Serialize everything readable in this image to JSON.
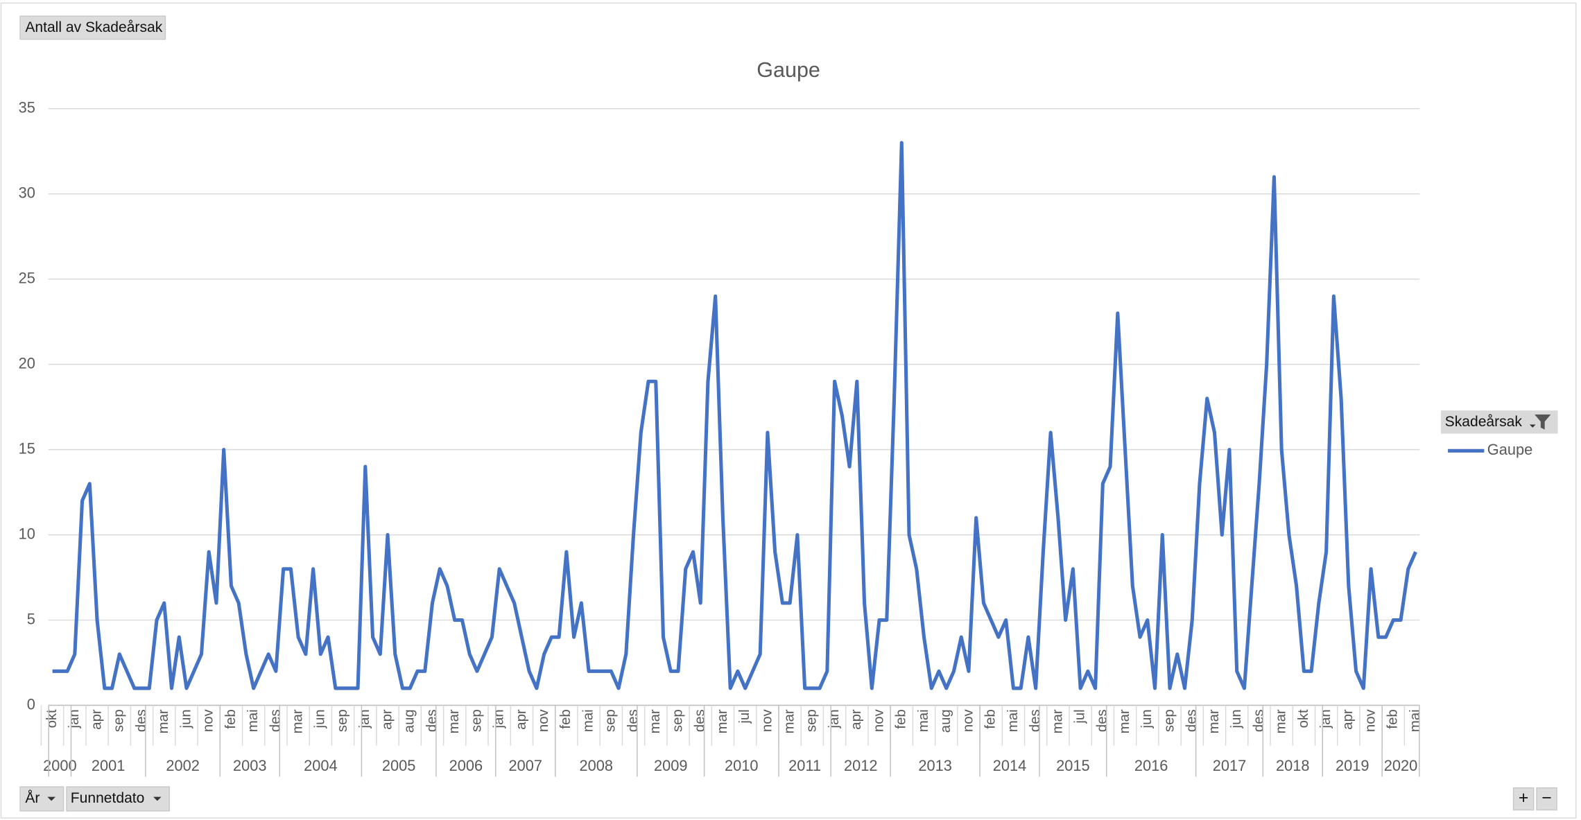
{
  "ui": {
    "value_button": "Antall av Skadeårsak",
    "axis_buttons": [
      "År",
      "Funnetdato"
    ],
    "zoom_buttons": [
      "+",
      "−"
    ]
  },
  "chart_data": {
    "type": "line",
    "title": "Gaupe",
    "legend_title": "Skadeårsak",
    "legend_position": "right",
    "categories": [
      "okt",
      null,
      null,
      "jan",
      null,
      null,
      "apr",
      null,
      null,
      "sep",
      null,
      null,
      "des",
      null,
      null,
      "mar",
      null,
      null,
      "jun",
      null,
      null,
      "nov",
      null,
      null,
      "feb",
      null,
      null,
      "mai",
      null,
      null,
      "des",
      null,
      null,
      "mar",
      null,
      null,
      "jun",
      null,
      null,
      "sep",
      null,
      null,
      "jan",
      null,
      null,
      "apr",
      null,
      null,
      "aug",
      null,
      null,
      "des",
      null,
      null,
      "mar",
      null,
      null,
      "sep",
      null,
      null,
      "jan",
      null,
      null,
      "apr",
      null,
      null,
      "nov",
      null,
      null,
      "feb",
      null,
      null,
      "mai",
      null,
      null,
      "sep",
      null,
      null,
      "des",
      null,
      null,
      "mar",
      null,
      null,
      "sep",
      null,
      null,
      "des",
      null,
      null,
      "mar",
      null,
      null,
      "jul",
      null,
      null,
      "nov",
      null,
      null,
      "mar",
      null,
      null,
      "sep",
      null,
      null,
      "jan",
      null,
      null,
      "apr",
      null,
      null,
      "nov",
      null,
      null,
      "feb",
      null,
      null,
      "mai",
      null,
      null,
      "aug",
      null,
      null,
      "nov",
      null,
      null,
      "feb",
      null,
      null,
      "mai",
      null,
      null,
      "des",
      null,
      null,
      "mar",
      null,
      null,
      "jul",
      null,
      null,
      "des",
      null,
      null,
      "mar",
      null,
      null,
      "jun",
      null,
      null,
      "sep",
      null,
      null,
      "des",
      null,
      null,
      "mar",
      null,
      null,
      "jun",
      null,
      null,
      "des",
      null,
      null,
      "mar",
      null,
      null,
      "okt",
      null,
      null,
      "jan",
      null,
      null,
      "apr",
      null,
      null,
      "nov",
      null,
      null,
      "feb",
      null,
      null,
      "mai"
    ],
    "year_groups": [
      {
        "label": "2000",
        "start": 0,
        "end": 2
      },
      {
        "label": "2001",
        "start": 3,
        "end": 12
      },
      {
        "label": "2002",
        "start": 13,
        "end": 22
      },
      {
        "label": "2003",
        "start": 23,
        "end": 30
      },
      {
        "label": "2004",
        "start": 31,
        "end": 41
      },
      {
        "label": "2005",
        "start": 42,
        "end": 51
      },
      {
        "label": "2006",
        "start": 52,
        "end": 59
      },
      {
        "label": "2007",
        "start": 60,
        "end": 67
      },
      {
        "label": "2008",
        "start": 68,
        "end": 78
      },
      {
        "label": "2009",
        "start": 79,
        "end": 87
      },
      {
        "label": "2010",
        "start": 88,
        "end": 97
      },
      {
        "label": "2011",
        "start": 98,
        "end": 104
      },
      {
        "label": "2012",
        "start": 105,
        "end": 112
      },
      {
        "label": "2013",
        "start": 113,
        "end": 124
      },
      {
        "label": "2014",
        "start": 125,
        "end": 132
      },
      {
        "label": "2015",
        "start": 133,
        "end": 141
      },
      {
        "label": "2016",
        "start": 142,
        "end": 153
      },
      {
        "label": "2017",
        "start": 154,
        "end": 162
      },
      {
        "label": "2018",
        "start": 163,
        "end": 170
      },
      {
        "label": "2019",
        "start": 171,
        "end": 178
      },
      {
        "label": "2020",
        "start": 179,
        "end": 183
      }
    ],
    "series": [
      {
        "name": "Gaupe",
        "color": "#4472c4",
        "values": [
          2,
          2,
          2,
          3,
          12,
          13,
          5,
          1,
          1,
          3,
          2,
          1,
          1,
          1,
          5,
          6,
          1,
          4,
          1,
          2,
          3,
          9,
          6,
          15,
          7,
          6,
          3,
          1,
          2,
          3,
          2,
          8,
          8,
          4,
          3,
          8,
          3,
          4,
          1,
          1,
          1,
          1,
          14,
          4,
          3,
          10,
          3,
          1,
          1,
          2,
          2,
          6,
          8,
          7,
          5,
          5,
          3,
          2,
          3,
          4,
          8,
          7,
          6,
          4,
          2,
          1,
          3,
          4,
          4,
          9,
          4,
          6,
          2,
          2,
          2,
          2,
          1,
          3,
          10,
          16,
          19,
          19,
          4,
          2,
          2,
          8,
          9,
          6,
          19,
          24,
          11,
          1,
          2,
          1,
          2,
          3,
          16,
          9,
          6,
          6,
          10,
          1,
          1,
          1,
          2,
          19,
          17,
          14,
          19,
          6,
          1,
          5,
          5,
          18,
          33,
          10,
          8,
          4,
          1,
          2,
          1,
          2,
          4,
          2,
          11,
          6,
          5,
          4,
          5,
          1,
          1,
          4,
          1,
          9,
          16,
          11,
          5,
          8,
          1,
          2,
          1,
          13,
          14,
          23,
          15,
          7,
          4,
          5,
          1,
          10,
          1,
          3,
          1,
          5,
          13,
          18,
          16,
          10,
          15,
          2,
          1,
          7,
          13,
          20,
          31,
          15,
          10,
          7,
          2,
          2,
          6,
          9,
          24,
          18,
          7,
          2,
          1,
          8,
          4,
          4,
          5,
          5,
          8,
          9
        ]
      }
    ],
    "ylim": [
      0,
      35
    ],
    "yticks": [
      0,
      5,
      10,
      15,
      20,
      25,
      30,
      35
    ],
    "grid": true
  }
}
